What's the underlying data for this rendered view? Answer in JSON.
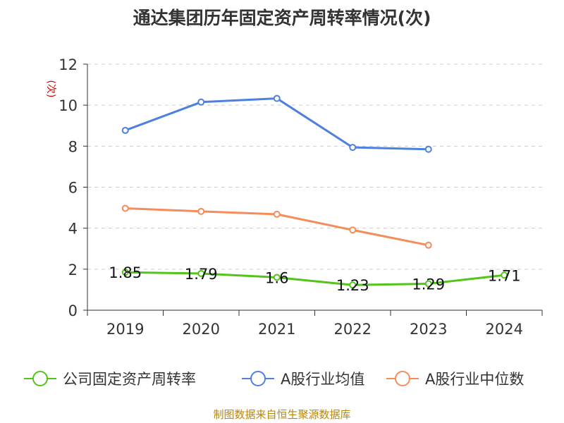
{
  "chart_data": {
    "type": "line",
    "title": "通达集团历年固定资产周转率情况(次)",
    "ylabel": "(次)",
    "categories": [
      "2019",
      "2020",
      "2021",
      "2022",
      "2023",
      "2024"
    ],
    "ylim": [
      0,
      12
    ],
    "yticks": [
      0,
      2,
      4,
      6,
      8,
      10,
      12
    ],
    "grid": true,
    "legend_position": "bottom",
    "series": [
      {
        "name": "公司固定资产周转率",
        "color": "#52c41a",
        "values": [
          1.85,
          1.79,
          1.6,
          1.23,
          1.29,
          1.71
        ],
        "labels": [
          "1.85",
          "1.79",
          "1.6",
          "1.23",
          "1.29",
          "1.71"
        ]
      },
      {
        "name": "A股行业均值",
        "color": "#4e80e0",
        "values": [
          8.77,
          10.15,
          10.33,
          7.94,
          7.85,
          null
        ]
      },
      {
        "name": "A股行业中位数",
        "color": "#f58c5c",
        "values": [
          4.97,
          4.82,
          4.68,
          3.91,
          3.17,
          null
        ]
      }
    ]
  },
  "footer": {
    "source": "制图数据来自恒生聚源数据库"
  }
}
